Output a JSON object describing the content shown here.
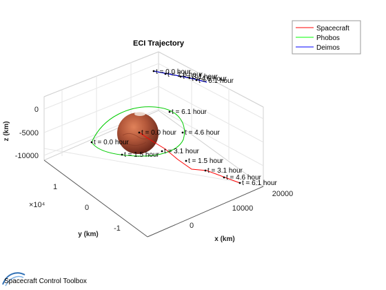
{
  "chart_data": {
    "type": "line",
    "title": "ECI Trajectory",
    "xlabel": "x (km)",
    "ylabel": "y (km)",
    "zlabel": "z (km)",
    "y_exponent": "×10⁴",
    "x_ticks": [
      "0",
      "10000",
      "20000"
    ],
    "y_ticks": [
      "-1",
      "0",
      "1"
    ],
    "z_ticks": [
      "0",
      "-5000",
      "-10000"
    ],
    "legend": [
      {
        "name": "Spacecraft",
        "color": "#ff0000"
      },
      {
        "name": "Phobos",
        "color": "#00ff00"
      },
      {
        "name": "Deimos",
        "color": "#0000ff"
      }
    ],
    "annotations": {
      "spacecraft": [
        "t = 0.0 hour",
        "t = 1.5 hour",
        "t = 3.1 hour",
        "t = 4.6 hour",
        "t = 6.1 hour"
      ],
      "phobos": [
        "t = 0.0 hour",
        "t = 1.5 hour",
        "t = 3.1 hour",
        "t = 4.6 hour",
        "t = 6.1 hour"
      ],
      "deimos": [
        "t = 0.0 hour",
        "t = 1.5 hour",
        "t = 3.1 hour",
        "t = 4.6 hour",
        "t = 6.1 hour"
      ]
    }
  },
  "footer": {
    "brand": "Spacecraft Control Toolbox"
  }
}
